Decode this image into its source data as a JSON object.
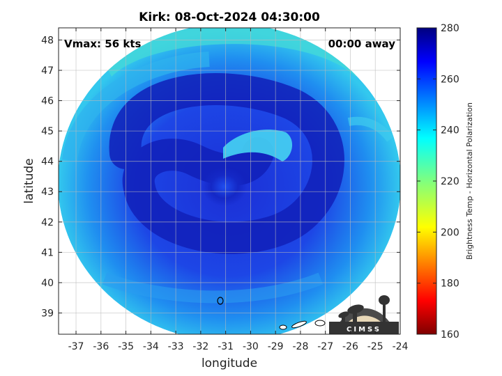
{
  "chart_data": {
    "type": "heatmap",
    "title": "Kirk: 08-Oct-2024 04:30:00",
    "xlabel": "longitude",
    "ylabel": "latitude",
    "xlim": [
      -37.7,
      -24
    ],
    "ylim": [
      38.3,
      48.4
    ],
    "x_ticks": [
      -37,
      -36,
      -35,
      -34,
      -33,
      -32,
      -31,
      -30,
      -29,
      -28,
      -27,
      -26,
      -25,
      -24
    ],
    "y_ticks": [
      39,
      40,
      41,
      42,
      43,
      44,
      45,
      46,
      47,
      48
    ],
    "grid": true,
    "annotations": {
      "vmax": "Vmax: 56 kts",
      "away": "00:00 away"
    },
    "colorbar": {
      "label": "Brightness Temp - Horizontal Polarization",
      "range": [
        160,
        280
      ],
      "ticks": [
        160,
        180,
        200,
        220,
        240,
        260,
        280
      ],
      "colormap": "jet"
    },
    "storm_center": {
      "lon": -31.0,
      "lat": 43.3
    },
    "swath_center": {
      "lon": -30.6,
      "lat": 43.2
    },
    "logo_text": "CIMSS",
    "colors": {
      "background_field": "#1d3fe0",
      "cold_ring": "#0f1aa8",
      "warm_arc": "#3bd6f0",
      "outer_edge": "#45e6c8"
    }
  }
}
